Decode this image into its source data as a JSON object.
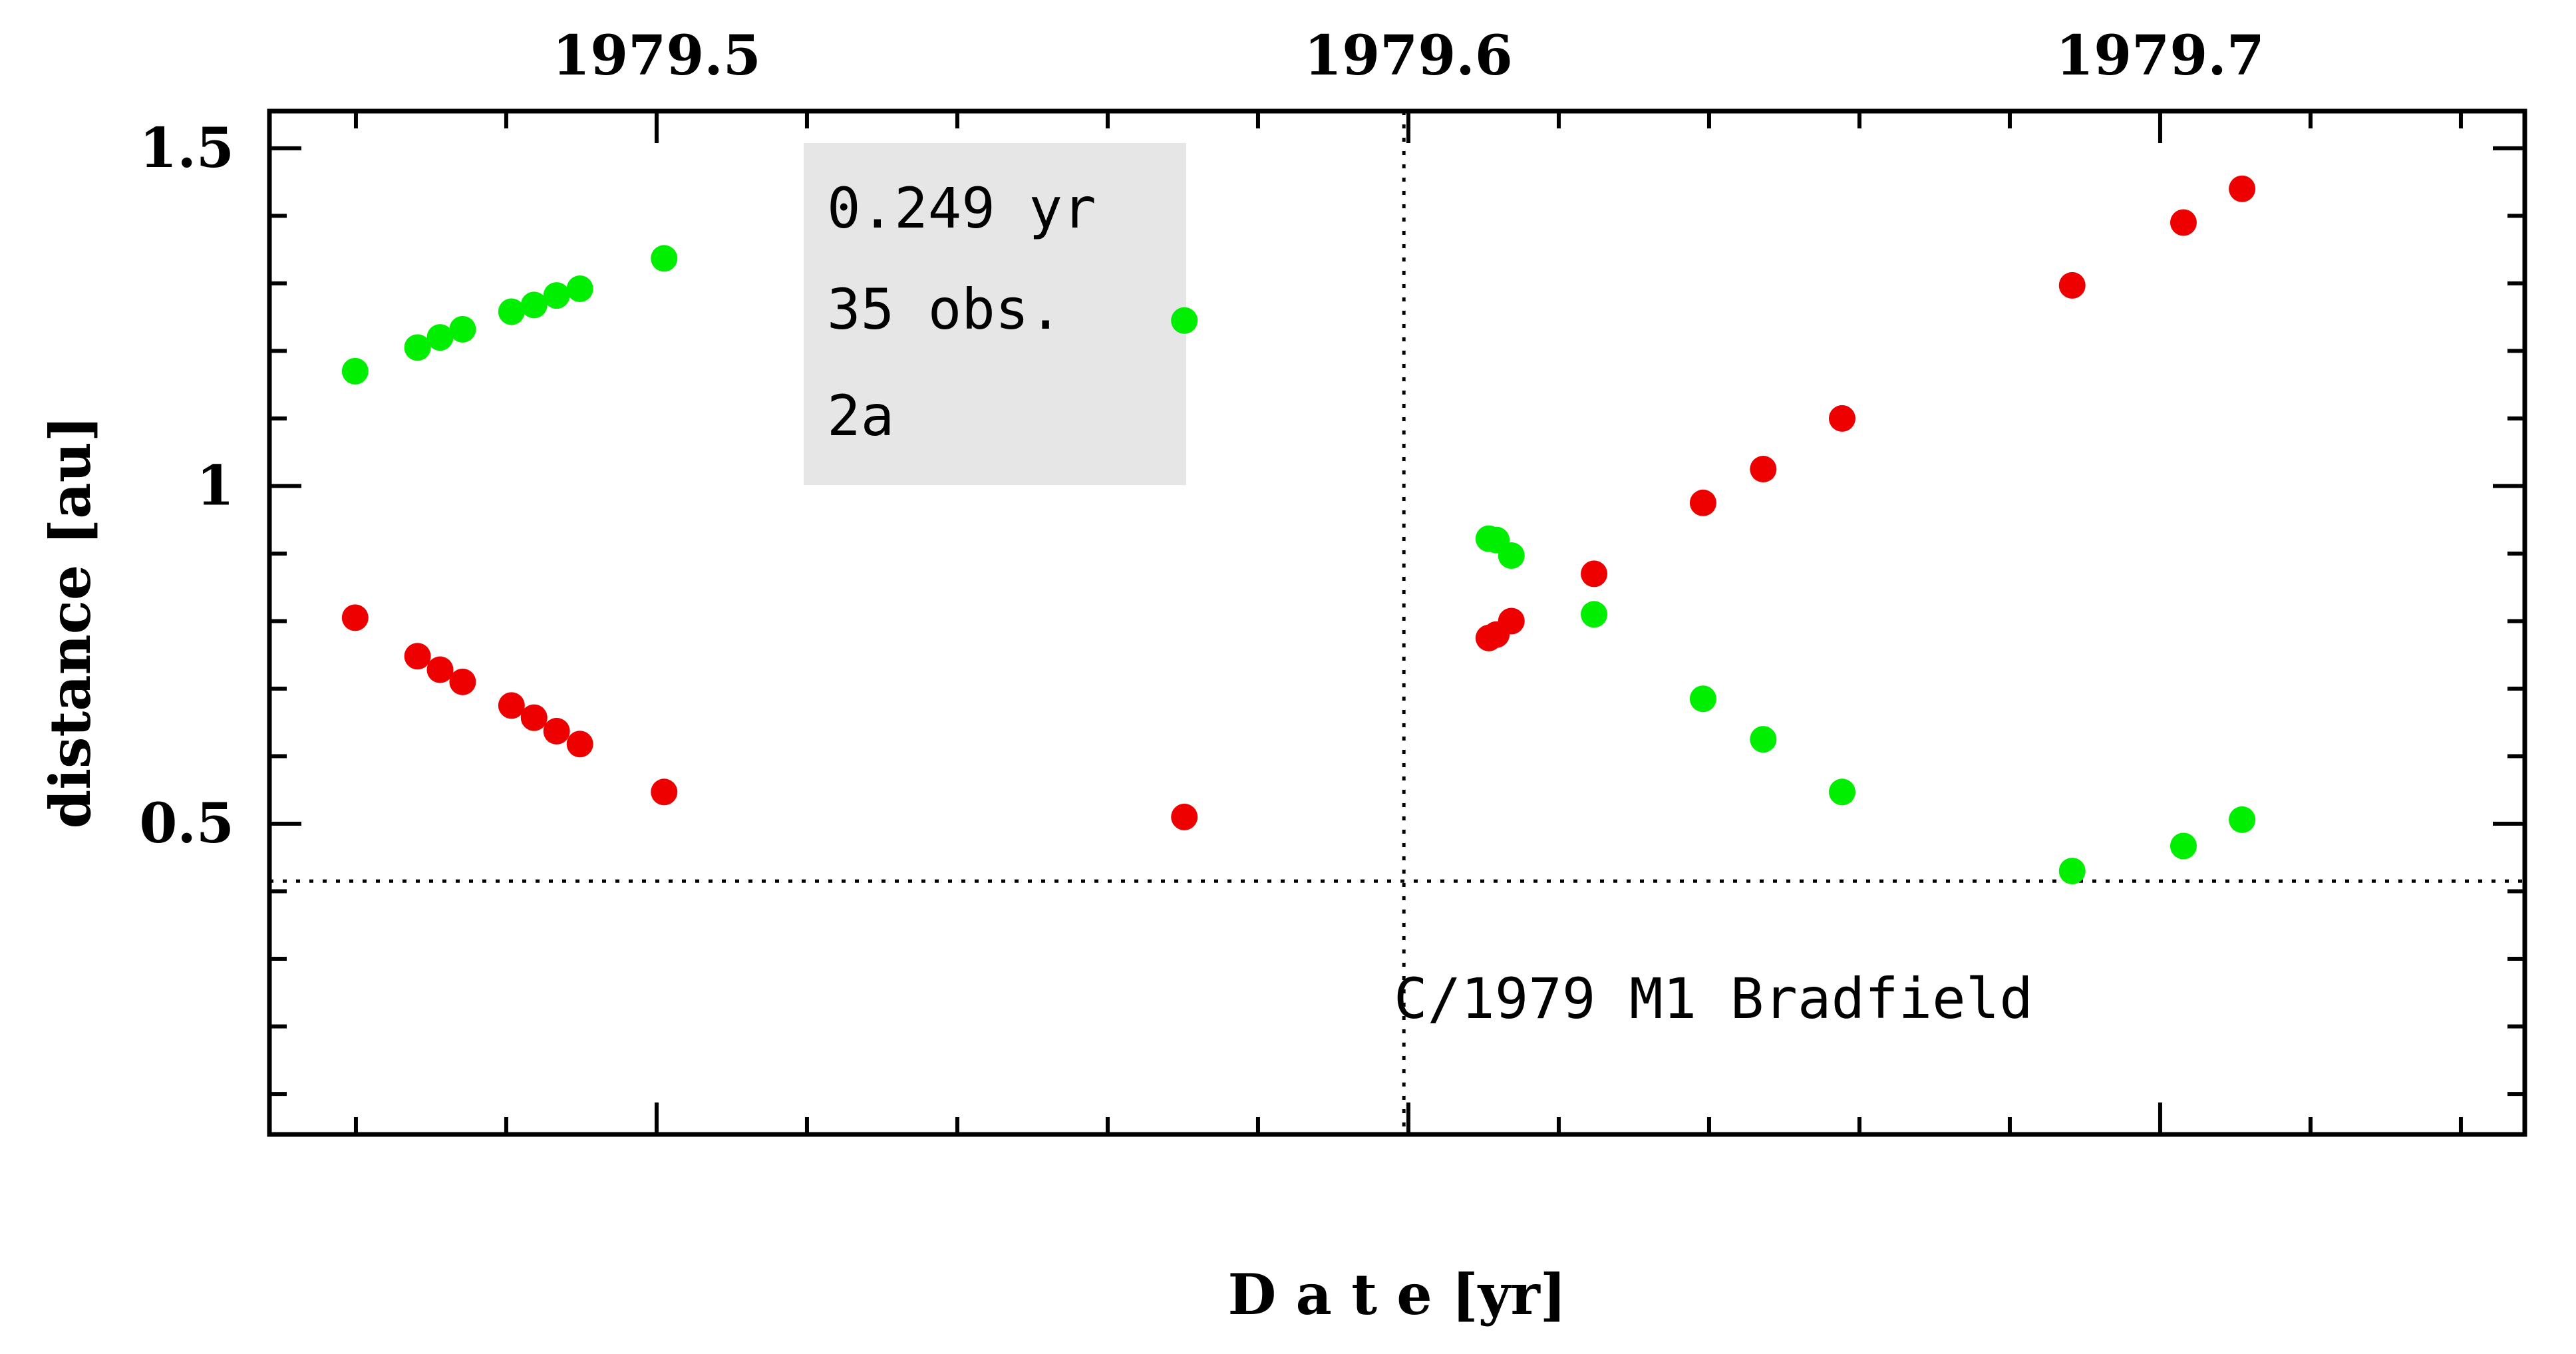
{
  "chart_data": {
    "type": "scatter",
    "xlabel": "D a t e [yr]",
    "ylabel": "distance [au]",
    "xlim": [
      1979.4485,
      1979.7485
    ],
    "ylim": [
      0.04,
      1.555
    ],
    "x_ticks": [
      1979.5,
      1979.6,
      1979.7
    ],
    "y_ticks": [
      0.5,
      1,
      1.5
    ],
    "y_tick_labels": [
      "0.5",
      "1",
      "1.5"
    ],
    "grid": false,
    "annotation_box": {
      "lines": [
        "0.249 yr",
        "35 obs.",
        "2a"
      ],
      "fill": "#e6e6e6"
    },
    "object_label": "C/1979 M1 Bradfield",
    "reference_lines": {
      "vertical_x": 1979.5994,
      "horizontal_y": 0.415,
      "style": "dotted"
    },
    "colors": {
      "series_green": "#00ee00",
      "series_red": "#ee0000",
      "axis": "#000000"
    },
    "series": [
      {
        "color": "#00ee00",
        "points": [
          [
            1979.4599,
            1.17
          ],
          [
            1979.4682,
            1.205
          ],
          [
            1979.4712,
            1.22
          ],
          [
            1979.4742,
            1.232
          ],
          [
            1979.4807,
            1.258
          ],
          [
            1979.4837,
            1.268
          ],
          [
            1979.4867,
            1.282
          ],
          [
            1979.4898,
            1.292
          ],
          [
            1979.501,
            1.337
          ],
          [
            1979.5702,
            1.245
          ],
          [
            1979.6107,
            0.922
          ],
          [
            1979.6117,
            0.92
          ],
          [
            1979.6137,
            0.897
          ],
          [
            1979.6247,
            0.81
          ],
          [
            1979.6392,
            0.685
          ],
          [
            1979.6472,
            0.625
          ],
          [
            1979.6577,
            0.547
          ],
          [
            1979.6883,
            0.43
          ],
          [
            1979.7031,
            0.467
          ],
          [
            1979.7109,
            0.506
          ]
        ]
      },
      {
        "color": "#ee0000",
        "points": [
          [
            1979.4599,
            0.805
          ],
          [
            1979.4682,
            0.748
          ],
          [
            1979.4712,
            0.728
          ],
          [
            1979.4742,
            0.71
          ],
          [
            1979.4807,
            0.675
          ],
          [
            1979.4837,
            0.657
          ],
          [
            1979.4867,
            0.637
          ],
          [
            1979.4898,
            0.618
          ],
          [
            1979.501,
            0.547
          ],
          [
            1979.5702,
            0.51
          ],
          [
            1979.6107,
            0.775
          ],
          [
            1979.6117,
            0.78
          ],
          [
            1979.6137,
            0.8
          ],
          [
            1979.6247,
            0.87
          ],
          [
            1979.6392,
            0.975
          ],
          [
            1979.6472,
            1.025
          ],
          [
            1979.6577,
            1.1
          ],
          [
            1979.6883,
            1.297
          ],
          [
            1979.7031,
            1.39
          ],
          [
            1979.7109,
            1.44
          ]
        ]
      }
    ]
  }
}
